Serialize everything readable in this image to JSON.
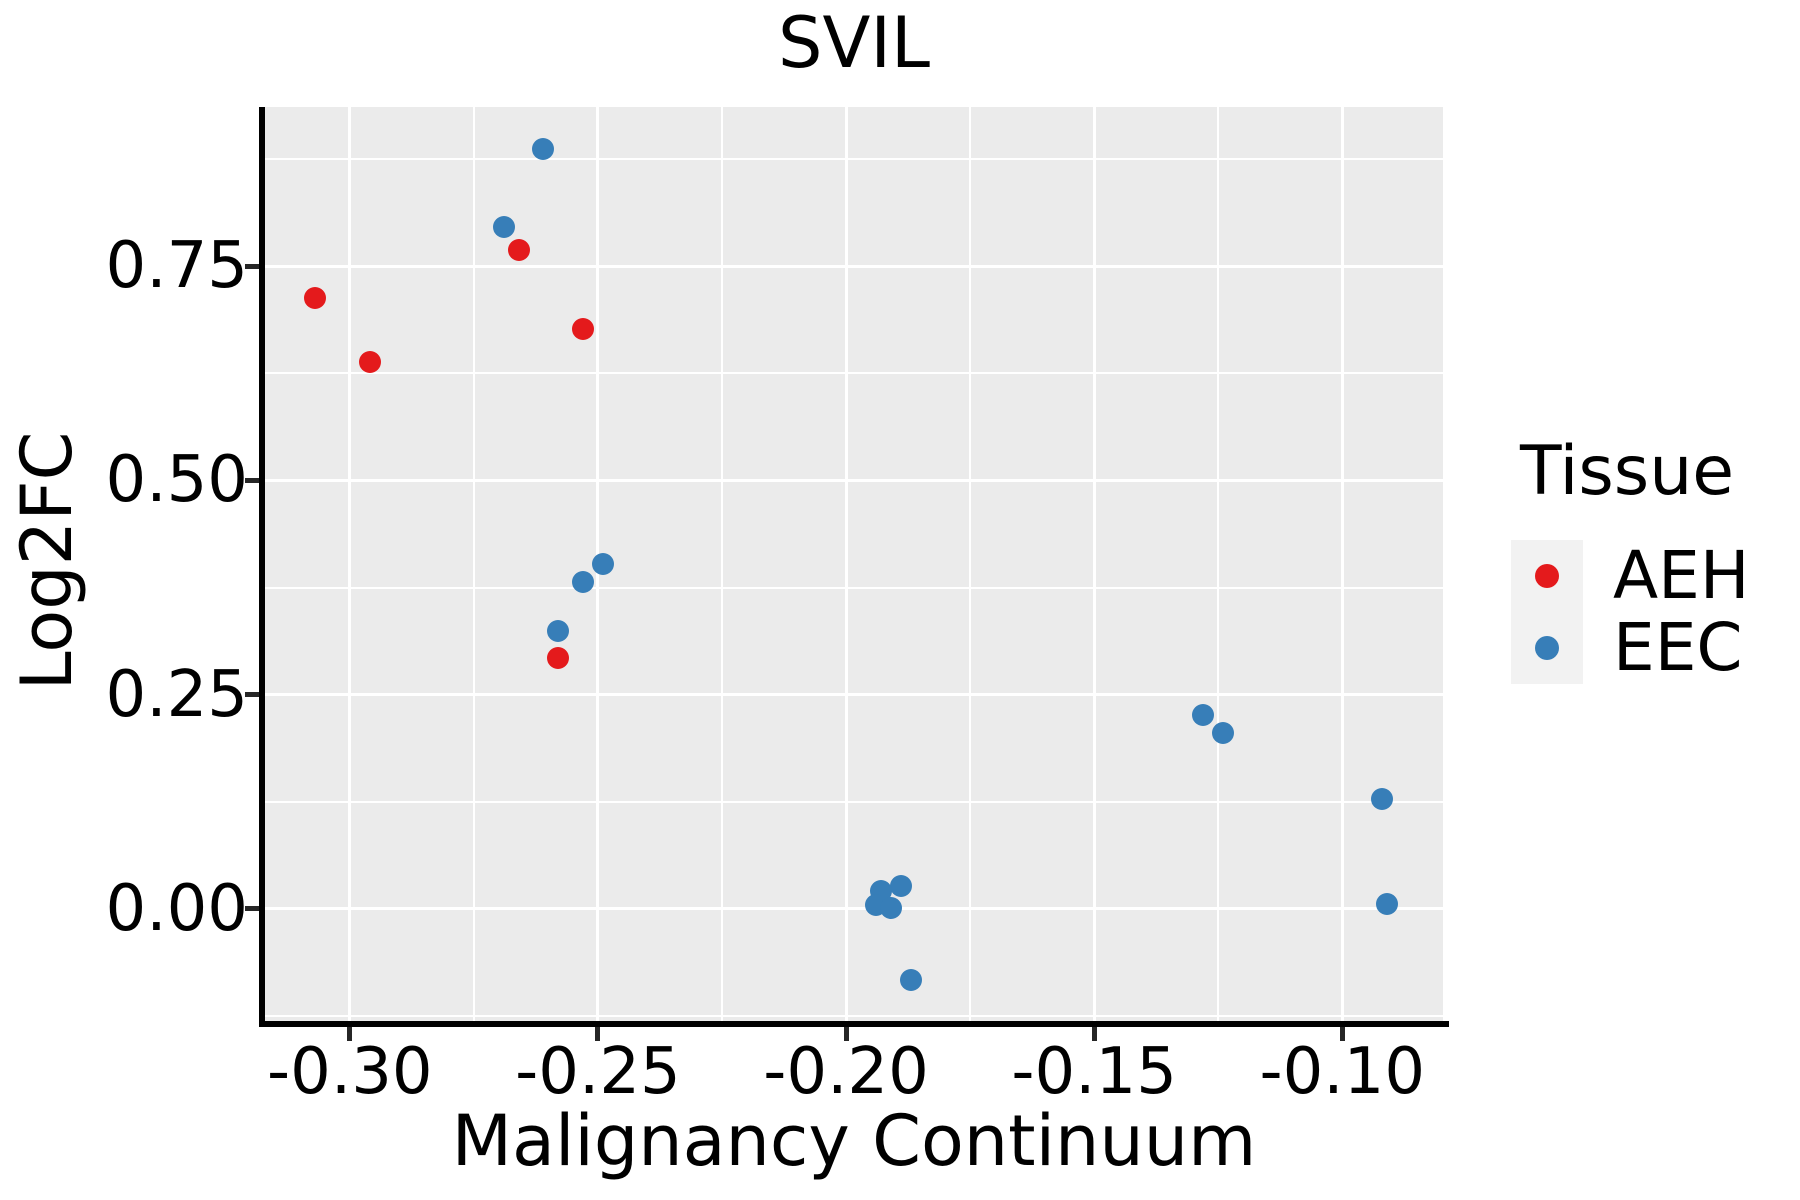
{
  "chart_data": {
    "type": "scatter",
    "title": "SVIL",
    "xlabel": "Malignancy Continuum",
    "ylabel": "Log2FC",
    "xlim": [
      -0.3171,
      -0.0797
    ],
    "ylim": [
      -0.131,
      0.936
    ],
    "x_ticks": {
      "values": [
        -0.3,
        -0.25,
        -0.2,
        -0.15,
        -0.1
      ],
      "labels": [
        "-0.30",
        "-0.25",
        "-0.20",
        "-0.15",
        "-0.10"
      ]
    },
    "y_ticks": {
      "values": [
        0.0,
        0.25,
        0.5,
        0.75
      ],
      "labels": [
        "0.00",
        "0.25",
        "0.50",
        "0.75"
      ]
    },
    "x_minor_gridlines": [
      -0.275,
      -0.225,
      -0.175,
      -0.125
    ],
    "y_minor_gridlines": [
      -0.125,
      0.125,
      0.375,
      0.625,
      0.875
    ],
    "grid": true,
    "panel_background_color": "#EBEBEB",
    "gridline_color": "#FFFFFF",
    "legend": {
      "title": "Tissue",
      "position": "right"
    },
    "series": [
      {
        "name": "AEH",
        "color": "#E41A1C",
        "points": [
          [
            -0.307,
            0.713
          ],
          [
            -0.296,
            0.638
          ],
          [
            -0.266,
            0.769
          ],
          [
            -0.253,
            0.677
          ],
          [
            -0.258,
            0.293
          ]
        ]
      },
      {
        "name": "EEC",
        "color": "#377EB8",
        "points": [
          [
            -0.261,
            0.887
          ],
          [
            -0.269,
            0.796
          ],
          [
            -0.249,
            0.402
          ],
          [
            -0.253,
            0.382
          ],
          [
            -0.258,
            0.324
          ],
          [
            -0.189,
            0.027
          ],
          [
            -0.193,
            0.021
          ],
          [
            -0.194,
            0.004
          ],
          [
            -0.191,
            0.001
          ],
          [
            -0.187,
            -0.083
          ],
          [
            -0.128,
            0.226
          ],
          [
            -0.124,
            0.205
          ],
          [
            -0.092,
            0.128
          ],
          [
            -0.091,
            0.006
          ]
        ]
      }
    ]
  }
}
